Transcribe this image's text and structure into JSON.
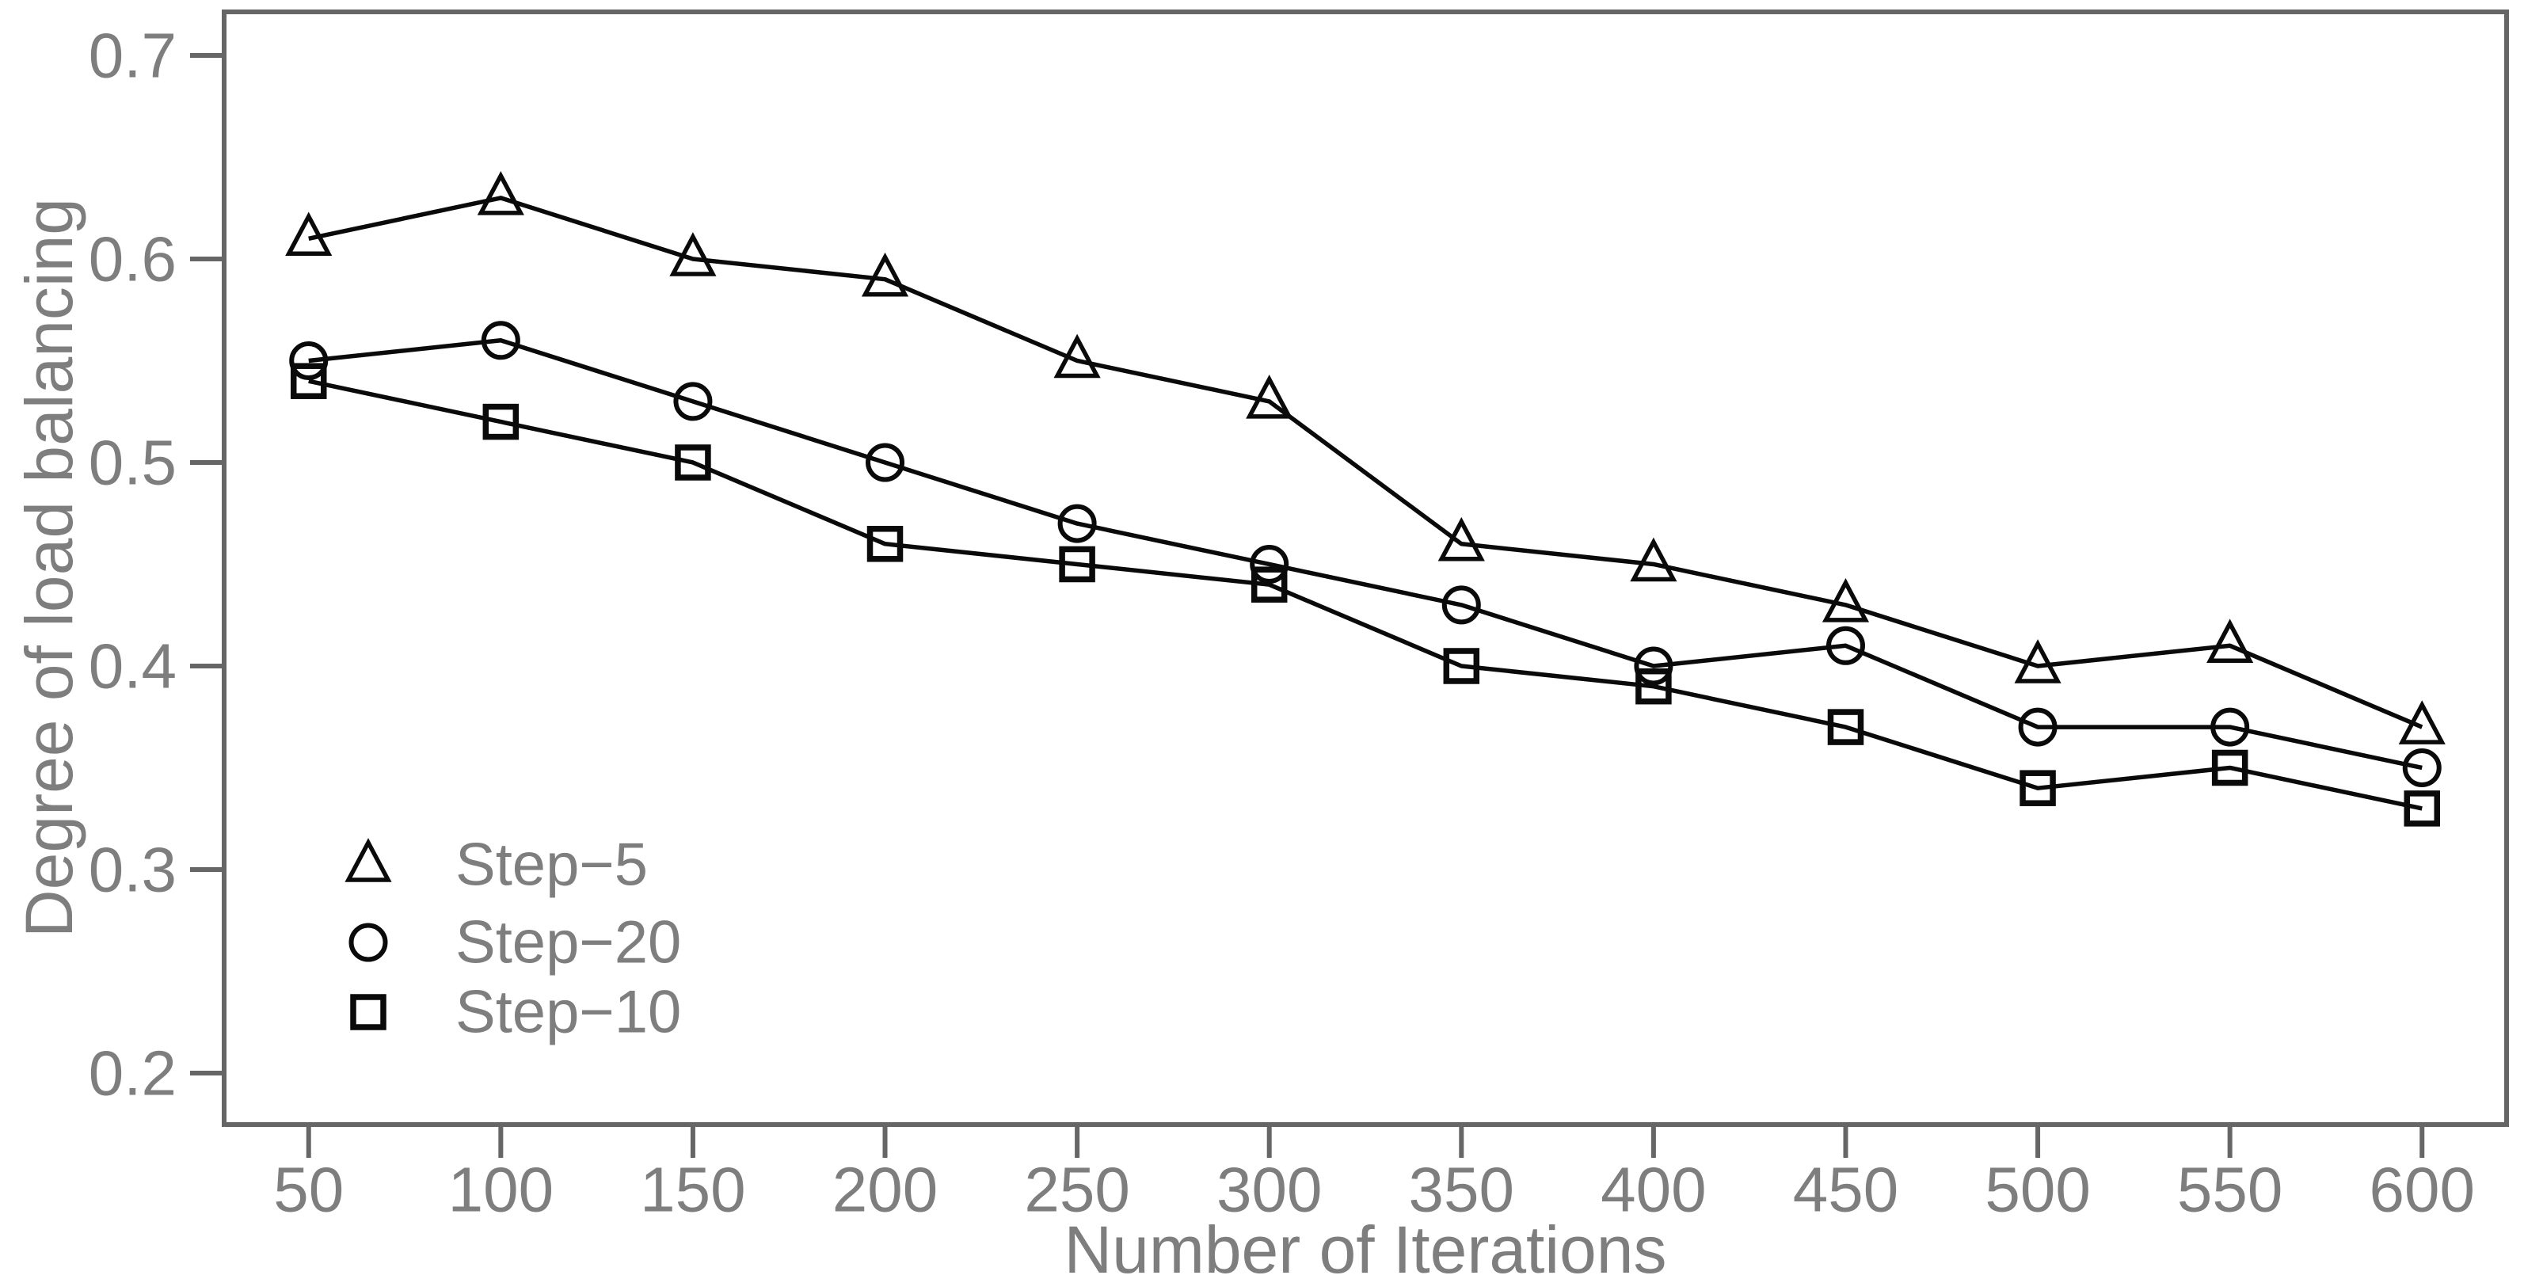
{
  "figure": {
    "background_color": "#ffffff",
    "frame_color": "#666666",
    "axis_text_color": "#7e7e7e",
    "series_color": "#0a0a0a"
  },
  "chart_data": {
    "type": "line",
    "title": "",
    "xlabel": "Number of Iterations",
    "ylabel": "Degree of load balancing",
    "x": [
      50,
      100,
      150,
      200,
      250,
      300,
      350,
      400,
      450,
      500,
      550,
      600
    ],
    "x_tick_labels": [
      "50",
      "100",
      "150",
      "200",
      "250",
      "300",
      "350",
      "400",
      "450",
      "500",
      "550",
      "600"
    ],
    "y_ticks": [
      0.2,
      0.3,
      0.4,
      0.5,
      0.6,
      0.7
    ],
    "y_tick_labels": [
      "0.2",
      "0.3",
      "0.4",
      "0.5",
      "0.6",
      "0.7"
    ],
    "xlim": [
      28,
      622
    ],
    "ylim": [
      0.1747,
      0.7214
    ],
    "grid": false,
    "frame_box": true,
    "legend_position": "inside-bottom-left",
    "series": [
      {
        "name": "Step−5",
        "marker": "triangle",
        "values": [
          0.61,
          0.63,
          0.6,
          0.59,
          0.55,
          0.53,
          0.46,
          0.45,
          0.43,
          0.4,
          0.41,
          0.37
        ]
      },
      {
        "name": "Step−20",
        "marker": "circle",
        "values": [
          0.55,
          0.56,
          0.53,
          0.5,
          0.47,
          0.45,
          0.43,
          0.4,
          0.41,
          0.37,
          0.37,
          0.35
        ]
      },
      {
        "name": "Step−10",
        "marker": "square",
        "values": [
          0.54,
          0.52,
          0.5,
          0.46,
          0.45,
          0.44,
          0.4,
          0.39,
          0.37,
          0.34,
          0.35,
          0.33
        ]
      }
    ]
  }
}
